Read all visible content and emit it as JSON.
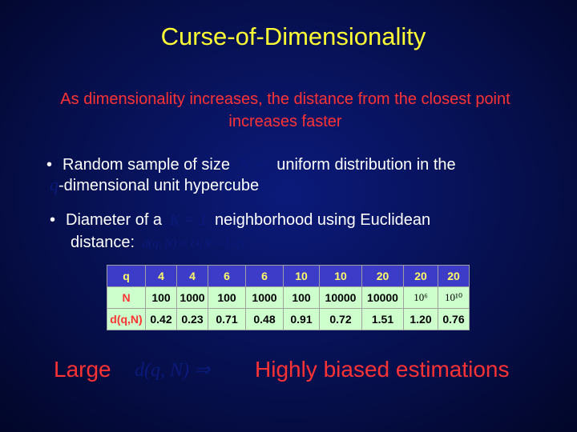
{
  "title": "Curse-of-Dimensionality",
  "subtitle": "As dimensionality increases, the distance from the closest point increases faster",
  "bullets": [
    {
      "dot": "•",
      "pre": "Random sample of size",
      "math": "N ⇒",
      "post": "uniform distribution in the",
      "line2_math": "q",
      "line2": "-dimensional unit hypercube"
    },
    {
      "dot": "•",
      "pre": "Diameter of a",
      "math": "K = 1",
      "post": "neighborhood using Euclidean",
      "line2": "distance:",
      "line2_math": "d(q, N) = O(N^−1/q)"
    }
  ],
  "table": {
    "headers": [
      "q",
      "N",
      "d(q,N)"
    ],
    "q": [
      "4",
      "4",
      "6",
      "6",
      "10",
      "10",
      "20",
      "20",
      "20"
    ],
    "N": [
      "100",
      "1000",
      "100",
      "1000",
      "100",
      "10000",
      "10000",
      "10⁶",
      "10¹⁰"
    ],
    "d": [
      "0.42",
      "0.23",
      "0.71",
      "0.48",
      "0.91",
      "0.72",
      "1.51",
      "1.20",
      "0.76"
    ]
  },
  "bottom": {
    "left": "Large",
    "math": "d(q, N) ⇒",
    "right": "Highly biased estimations"
  }
}
